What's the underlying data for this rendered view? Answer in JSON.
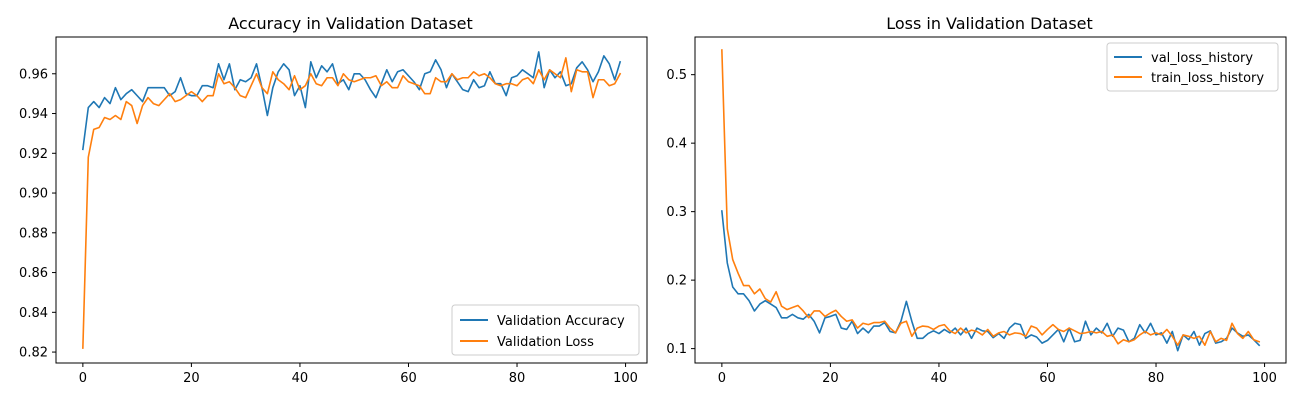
{
  "chart_data": [
    {
      "type": "line",
      "title": "Accuracy in Validation Dataset",
      "xlabel": "",
      "ylabel": "",
      "xlim": [
        -4.95,
        103.95
      ],
      "ylim": [
        0.8145,
        0.9785
      ],
      "xticks": [
        0,
        20,
        40,
        60,
        80,
        100
      ],
      "yticks": [
        0.82,
        0.84,
        0.86,
        0.88,
        0.9,
        0.92,
        0.94,
        0.96
      ],
      "ytick_labels": [
        "0.82",
        "0.84",
        "0.86",
        "0.88",
        "0.90",
        "0.92",
        "0.94",
        "0.96"
      ],
      "grid": false,
      "legend_position": "lower-right",
      "series": [
        {
          "name": "Validation Accuracy",
          "color": "#1f77b4",
          "x_start": 0,
          "values": [
            0.922,
            0.943,
            0.946,
            0.943,
            0.948,
            0.945,
            0.953,
            0.947,
            0.95,
            0.952,
            0.949,
            0.946,
            0.953,
            0.953,
            0.953,
            0.953,
            0.949,
            0.951,
            0.958,
            0.95,
            0.949,
            0.949,
            0.954,
            0.954,
            0.953,
            0.965,
            0.957,
            0.965,
            0.952,
            0.957,
            0.956,
            0.958,
            0.965,
            0.953,
            0.939,
            0.953,
            0.961,
            0.965,
            0.962,
            0.949,
            0.954,
            0.943,
            0.966,
            0.958,
            0.964,
            0.961,
            0.965,
            0.955,
            0.957,
            0.952,
            0.96,
            0.96,
            0.957,
            0.952,
            0.948,
            0.955,
            0.962,
            0.956,
            0.961,
            0.962,
            0.959,
            0.956,
            0.952,
            0.96,
            0.961,
            0.967,
            0.962,
            0.953,
            0.96,
            0.956,
            0.952,
            0.951,
            0.957,
            0.953,
            0.954,
            0.961,
            0.955,
            0.955,
            0.949,
            0.958,
            0.959,
            0.962,
            0.96,
            0.958,
            0.971,
            0.953,
            0.962,
            0.958,
            0.961,
            0.954,
            0.955,
            0.963,
            0.966,
            0.962,
            0.956,
            0.961,
            0.969,
            0.965,
            0.957,
            0.966
          ]
        },
        {
          "name": "Validation Loss",
          "color": "#ff7f0e",
          "x_start": 0,
          "values": [
            0.822,
            0.918,
            0.932,
            0.933,
            0.938,
            0.937,
            0.939,
            0.937,
            0.946,
            0.944,
            0.935,
            0.944,
            0.948,
            0.945,
            0.944,
            0.947,
            0.95,
            0.946,
            0.947,
            0.949,
            0.951,
            0.949,
            0.946,
            0.949,
            0.949,
            0.96,
            0.955,
            0.956,
            0.953,
            0.949,
            0.948,
            0.954,
            0.96,
            0.953,
            0.95,
            0.961,
            0.957,
            0.955,
            0.952,
            0.959,
            0.952,
            0.954,
            0.96,
            0.955,
            0.954,
            0.958,
            0.958,
            0.954,
            0.96,
            0.957,
            0.956,
            0.957,
            0.958,
            0.958,
            0.959,
            0.954,
            0.956,
            0.953,
            0.953,
            0.959,
            0.956,
            0.955,
            0.954,
            0.95,
            0.95,
            0.958,
            0.956,
            0.956,
            0.96,
            0.957,
            0.958,
            0.958,
            0.961,
            0.959,
            0.96,
            0.958,
            0.955,
            0.954,
            0.955,
            0.955,
            0.954,
            0.957,
            0.958,
            0.955,
            0.962,
            0.957,
            0.962,
            0.96,
            0.958,
            0.968,
            0.951,
            0.962,
            0.961,
            0.961,
            0.948,
            0.957,
            0.957,
            0.954,
            0.955,
            0.96
          ]
        }
      ]
    },
    {
      "type": "line",
      "title": "Loss in Validation Dataset",
      "xlabel": "",
      "ylabel": "",
      "xlim": [
        -4.95,
        103.95
      ],
      "ylim": [
        0.079,
        0.555
      ],
      "xticks": [
        0,
        20,
        40,
        60,
        80,
        100
      ],
      "yticks": [
        0.1,
        0.2,
        0.3,
        0.4,
        0.5
      ],
      "ytick_labels": [
        "0.1",
        "0.2",
        "0.3",
        "0.4",
        "0.5"
      ],
      "grid": false,
      "legend_position": "upper-right",
      "series": [
        {
          "name": "val_loss_history",
          "color": "#1f77b4",
          "x_start": 0,
          "values": [
            0.301,
            0.225,
            0.19,
            0.18,
            0.18,
            0.17,
            0.155,
            0.165,
            0.17,
            0.165,
            0.16,
            0.145,
            0.145,
            0.15,
            0.145,
            0.143,
            0.15,
            0.14,
            0.123,
            0.145,
            0.147,
            0.15,
            0.13,
            0.128,
            0.14,
            0.122,
            0.13,
            0.123,
            0.133,
            0.133,
            0.138,
            0.125,
            0.123,
            0.14,
            0.169,
            0.14,
            0.115,
            0.115,
            0.122,
            0.126,
            0.122,
            0.128,
            0.123,
            0.13,
            0.12,
            0.13,
            0.115,
            0.13,
            0.126,
            0.125,
            0.116,
            0.122,
            0.115,
            0.13,
            0.137,
            0.135,
            0.115,
            0.12,
            0.117,
            0.108,
            0.112,
            0.12,
            0.128,
            0.11,
            0.13,
            0.11,
            0.112,
            0.14,
            0.12,
            0.13,
            0.123,
            0.137,
            0.118,
            0.13,
            0.127,
            0.11,
            0.115,
            0.135,
            0.123,
            0.137,
            0.12,
            0.123,
            0.108,
            0.125,
            0.097,
            0.12,
            0.113,
            0.125,
            0.105,
            0.122,
            0.126,
            0.108,
            0.11,
            0.115,
            0.13,
            0.123,
            0.118,
            0.12,
            0.113,
            0.105
          ]
        },
        {
          "name": "train_loss_history",
          "color": "#ff7f0e",
          "x_start": 0,
          "values": [
            0.536,
            0.275,
            0.23,
            0.21,
            0.192,
            0.192,
            0.18,
            0.187,
            0.173,
            0.168,
            0.183,
            0.162,
            0.157,
            0.16,
            0.163,
            0.155,
            0.145,
            0.155,
            0.155,
            0.147,
            0.152,
            0.156,
            0.147,
            0.14,
            0.142,
            0.13,
            0.137,
            0.135,
            0.138,
            0.138,
            0.14,
            0.13,
            0.123,
            0.137,
            0.14,
            0.118,
            0.13,
            0.133,
            0.132,
            0.128,
            0.133,
            0.135,
            0.126,
            0.122,
            0.13,
            0.123,
            0.127,
            0.125,
            0.12,
            0.128,
            0.118,
            0.123,
            0.125,
            0.12,
            0.123,
            0.122,
            0.118,
            0.133,
            0.13,
            0.12,
            0.128,
            0.135,
            0.128,
            0.125,
            0.13,
            0.126,
            0.122,
            0.123,
            0.125,
            0.123,
            0.125,
            0.118,
            0.12,
            0.107,
            0.113,
            0.11,
            0.113,
            0.12,
            0.125,
            0.12,
            0.123,
            0.12,
            0.128,
            0.118,
            0.105,
            0.12,
            0.118,
            0.115,
            0.118,
            0.105,
            0.125,
            0.11,
            0.115,
            0.112,
            0.137,
            0.122,
            0.115,
            0.125,
            0.113,
            0.11
          ]
        }
      ]
    }
  ]
}
